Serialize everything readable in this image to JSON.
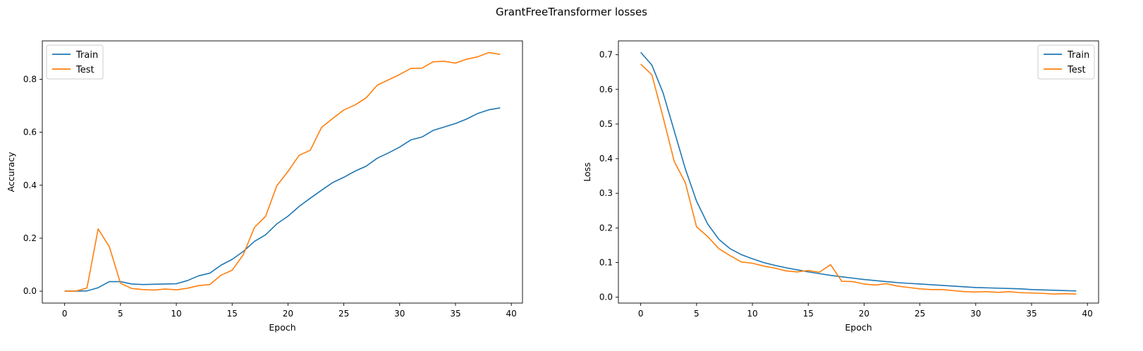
{
  "figure_title": "GrantFreeTransformer losses",
  "colors": {
    "train": "#1f77b4",
    "test": "#ff7f0e"
  },
  "chart_data": [
    {
      "type": "line",
      "title": "",
      "xlabel": "Epoch",
      "ylabel": "Accuracy",
      "xlim": [
        -2,
        41
      ],
      "ylim": [
        -0.045,
        0.945
      ],
      "xticks": [
        0,
        5,
        10,
        15,
        20,
        25,
        30,
        35,
        40
      ],
      "xtick_labels": [
        "0",
        "5",
        "10",
        "15",
        "20",
        "25",
        "30",
        "35",
        "40"
      ],
      "yticks": [
        0.0,
        0.2,
        0.4,
        0.6,
        0.8
      ],
      "ytick_labels": [
        "0.0",
        "0.2",
        "0.4",
        "0.6",
        "0.8"
      ],
      "legend": "upper-left",
      "grid": false,
      "x": [
        0,
        1,
        2,
        3,
        4,
        5,
        6,
        7,
        8,
        9,
        10,
        11,
        12,
        13,
        14,
        15,
        16,
        17,
        18,
        19,
        20,
        21,
        22,
        23,
        24,
        25,
        26,
        27,
        28,
        29,
        30,
        31,
        32,
        33,
        34,
        35,
        36,
        37,
        38,
        39
      ],
      "series": [
        {
          "name": "Train",
          "color": "#1f77b4",
          "values": [
            0.0,
            0.0,
            0.001,
            0.013,
            0.036,
            0.036,
            0.027,
            0.025,
            0.026,
            0.027,
            0.028,
            0.04,
            0.058,
            0.068,
            0.098,
            0.12,
            0.15,
            0.188,
            0.213,
            0.254,
            0.283,
            0.32,
            0.351,
            0.381,
            0.41,
            0.43,
            0.453,
            0.472,
            0.502,
            0.522,
            0.544,
            0.571,
            0.582,
            0.607,
            0.62,
            0.633,
            0.65,
            0.671,
            0.685,
            0.692
          ]
        },
        {
          "name": "Test",
          "color": "#ff7f0e",
          "values": [
            0.0,
            0.0,
            0.012,
            0.235,
            0.168,
            0.03,
            0.01,
            0.006,
            0.004,
            0.008,
            0.005,
            0.011,
            0.021,
            0.025,
            0.06,
            0.079,
            0.138,
            0.241,
            0.283,
            0.398,
            0.452,
            0.513,
            0.532,
            0.618,
            0.652,
            0.684,
            0.703,
            0.73,
            0.778,
            0.798,
            0.818,
            0.841,
            0.842,
            0.866,
            0.868,
            0.861,
            0.876,
            0.885,
            0.901,
            0.894
          ]
        }
      ]
    },
    {
      "type": "line",
      "title": "",
      "xlabel": "Epoch",
      "ylabel": "Loss",
      "xlim": [
        -2,
        41
      ],
      "ylim": [
        -0.017,
        0.74
      ],
      "xticks": [
        0,
        5,
        10,
        15,
        20,
        25,
        30,
        35,
        40
      ],
      "xtick_labels": [
        "0",
        "5",
        "10",
        "15",
        "20",
        "25",
        "30",
        "35",
        "40"
      ],
      "yticks": [
        0.0,
        0.1,
        0.2,
        0.3,
        0.4,
        0.5,
        0.6,
        0.7
      ],
      "ytick_labels": [
        "0.0",
        "0.1",
        "0.2",
        "0.3",
        "0.4",
        "0.5",
        "0.6",
        "0.7"
      ],
      "legend": "upper-right",
      "grid": false,
      "x": [
        0,
        1,
        2,
        3,
        4,
        5,
        6,
        7,
        8,
        9,
        10,
        11,
        12,
        13,
        14,
        15,
        16,
        17,
        18,
        19,
        20,
        21,
        22,
        23,
        24,
        25,
        26,
        27,
        28,
        29,
        30,
        31,
        32,
        33,
        34,
        35,
        36,
        37,
        38,
        39
      ],
      "series": [
        {
          "name": "Train",
          "color": "#1f77b4",
          "values": [
            0.707,
            0.67,
            0.59,
            0.48,
            0.37,
            0.277,
            0.211,
            0.167,
            0.14,
            0.123,
            0.111,
            0.1,
            0.092,
            0.085,
            0.079,
            0.073,
            0.068,
            0.063,
            0.059,
            0.055,
            0.051,
            0.048,
            0.045,
            0.042,
            0.04,
            0.038,
            0.036,
            0.034,
            0.032,
            0.03,
            0.028,
            0.027,
            0.026,
            0.025,
            0.024,
            0.022,
            0.021,
            0.02,
            0.019,
            0.018
          ]
        },
        {
          "name": "Test",
          "color": "#ff7f0e",
          "values": [
            0.673,
            0.642,
            0.52,
            0.392,
            0.33,
            0.203,
            0.175,
            0.14,
            0.12,
            0.102,
            0.098,
            0.09,
            0.084,
            0.076,
            0.073,
            0.077,
            0.072,
            0.094,
            0.046,
            0.045,
            0.038,
            0.035,
            0.039,
            0.032,
            0.028,
            0.024,
            0.022,
            0.022,
            0.019,
            0.016,
            0.015,
            0.016,
            0.014,
            0.016,
            0.013,
            0.012,
            0.011,
            0.009,
            0.01,
            0.009
          ]
        }
      ]
    }
  ]
}
